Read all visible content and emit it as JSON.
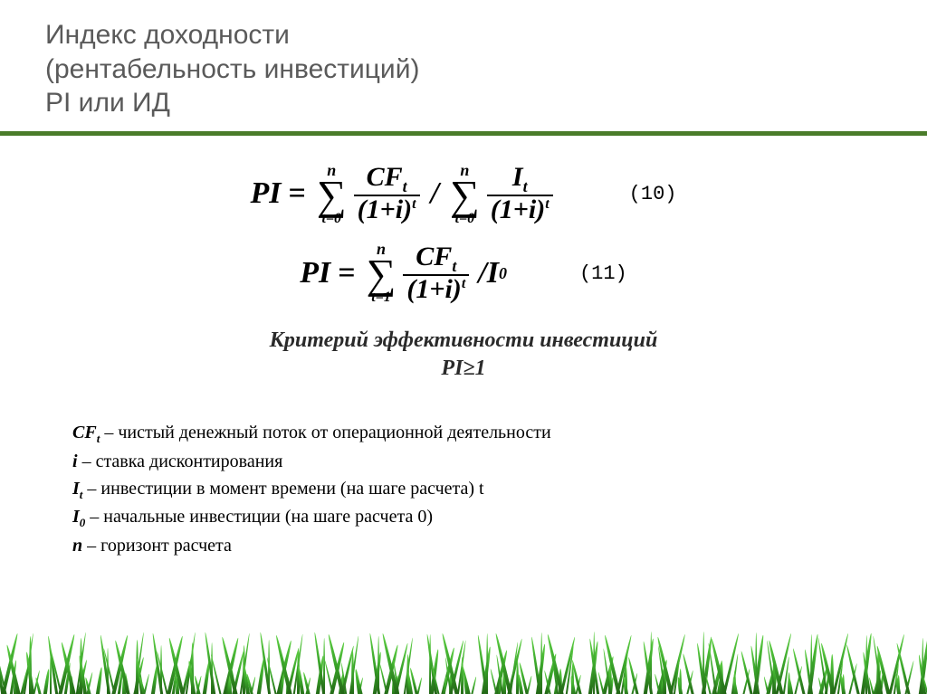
{
  "header": {
    "line1": "Индекс доходности",
    "line2": "(рентабельность инвестиций)",
    "line3": "PI или ИД"
  },
  "colors": {
    "underline": "#4a7c2a",
    "title_text": "#5a5a5a",
    "body_text": "#1a1a1a",
    "background": "#ffffff"
  },
  "formulas": {
    "eq10": {
      "lhs": "PI",
      "sum1": {
        "top": "n",
        "bottom": "t=0",
        "num_main": "CF",
        "num_sub": "t",
        "den_base": "(1+i)",
        "den_exp": "t"
      },
      "divider": "/",
      "sum2": {
        "top": "n",
        "bottom": "t=0",
        "num_main": "I",
        "num_sub": "t",
        "den_base": "(1+i)",
        "den_exp": "t"
      },
      "number": "(10)"
    },
    "eq11": {
      "lhs": "PI",
      "sum": {
        "top": "n",
        "bottom": "t=1",
        "num_main": "CF",
        "num_sub": "t",
        "den_base": "(1+i)",
        "den_exp": "t"
      },
      "tail_slash": "/",
      "tail_sym": "I",
      "tail_sub": "0",
      "number": "(11)"
    }
  },
  "criterion": {
    "line1": "Критерий эффективности инвестиций",
    "line2": "PI≥1"
  },
  "legend": {
    "items": [
      {
        "sym": "CF",
        "sub": "t",
        "desc": " – чистый денежный поток от операционной деятельности"
      },
      {
        "sym": "i",
        "sub": "",
        "desc": " – ставка дисконтирования"
      },
      {
        "sym": "I",
        "sub": "t",
        "desc": " – инвестиции в момент времени (на шаге расчета) t"
      },
      {
        "sym": "I",
        "sub": "0",
        "desc": " – начальные инвестиции (на шаге расчета 0)"
      },
      {
        "sym": "n",
        "sub": "",
        "desc": " – горизонт расчета"
      }
    ]
  },
  "decor": {
    "grass_blade_count": 260,
    "grass_colors": [
      "#1e5a12",
      "#3aa52a",
      "#5fd045"
    ]
  },
  "typography": {
    "title_fontsize": 30,
    "formula_fontsize": 34,
    "criterion_fontsize": 24,
    "legend_fontsize": 20,
    "eqnum_font": "Courier New"
  }
}
